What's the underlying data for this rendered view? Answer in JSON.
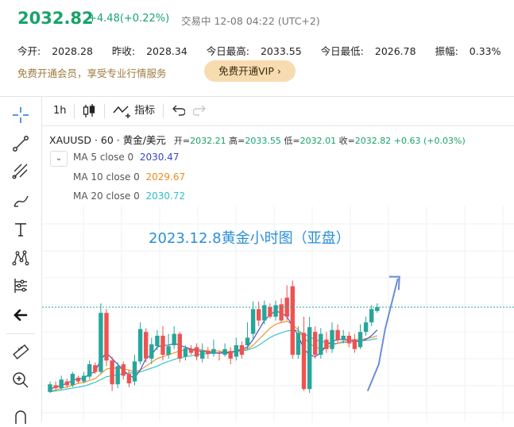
{
  "header": {
    "price": "2032.82",
    "change": "+4.48(+0.22%)",
    "status": "交易中 12-08 04:22 (UTC+2)",
    "stats": [
      {
        "label": "今开:",
        "value": "2028.28"
      },
      {
        "label": "昨收:",
        "value": "2028.34"
      },
      {
        "label": "今日最高:",
        "value": "2033.55"
      },
      {
        "label": "今日最低:",
        "value": "2026.78"
      },
      {
        "label": "振幅:",
        "value": "0.33%"
      }
    ],
    "promo_text": "免费开通会员，享受专业行情服务",
    "vip_button": "免费开通VIP",
    "vip_chevron": "›"
  },
  "toolbar": {
    "interval": "1h",
    "indicators_label": "指标"
  },
  "legend": {
    "symbol": "XAUUSD · 60 · 黄金/美元",
    "open_label": "开=",
    "open": "2032.21",
    "high_label": "高=",
    "high": "2033.55",
    "low_label": "低=",
    "low": "2032.01",
    "close_label": "收=",
    "close": "2032.82",
    "change": "+0.63 (+0.03%)",
    "ma": [
      {
        "label": "MA 5 close 0",
        "value": "2030.47",
        "color": "#3a45c8"
      },
      {
        "label": "MA 10 close 0",
        "value": "2029.67",
        "color": "#f08a1e"
      },
      {
        "label": "MA 20 close 0",
        "value": "2030.72",
        "color": "#2cbfc9"
      }
    ]
  },
  "chart_title": "2023.12.8黄金小时图（亚盘）",
  "colors": {
    "up": "#26a69a",
    "down": "#ef5350",
    "price_line": "#26a69a",
    "arrow": "#6a8fd4"
  },
  "chart_data": {
    "type": "candlestick",
    "title": "2023.12.8黄金小时图（亚盘）",
    "candles": [
      {
        "o": 1,
        "c": 9,
        "h": 12,
        "l": 0,
        "d": "up"
      },
      {
        "o": 8,
        "c": 5,
        "h": 12,
        "l": 3,
        "d": "down"
      },
      {
        "o": 5,
        "c": 14,
        "h": 18,
        "l": 3,
        "d": "up"
      },
      {
        "o": 12,
        "c": 8,
        "h": 15,
        "l": 6,
        "d": "down"
      },
      {
        "o": 8,
        "c": 20,
        "h": 22,
        "l": 6,
        "d": "up"
      },
      {
        "o": 16,
        "c": 12,
        "h": 18,
        "l": 10,
        "d": "down"
      },
      {
        "o": 12,
        "c": 18,
        "h": 22,
        "l": 10,
        "d": "up"
      },
      {
        "o": 17,
        "c": 30,
        "h": 34,
        "l": 14,
        "d": "up"
      },
      {
        "o": 29,
        "c": 22,
        "h": 32,
        "l": 20,
        "d": "down"
      },
      {
        "o": 22,
        "c": 84,
        "h": 94,
        "l": 20,
        "d": "up"
      },
      {
        "o": 84,
        "c": 34,
        "h": 88,
        "l": 28,
        "d": "down"
      },
      {
        "o": 34,
        "c": 9,
        "h": 38,
        "l": 2,
        "d": "down"
      },
      {
        "o": 9,
        "c": 28,
        "h": 32,
        "l": 5,
        "d": "up"
      },
      {
        "o": 30,
        "c": 18,
        "h": 33,
        "l": 14,
        "d": "down"
      },
      {
        "o": 20,
        "c": 10,
        "h": 24,
        "l": 6,
        "d": "down"
      },
      {
        "o": 12,
        "c": 33,
        "h": 40,
        "l": 8,
        "d": "up"
      },
      {
        "o": 33,
        "c": 67,
        "h": 74,
        "l": 30,
        "d": "up"
      },
      {
        "o": 64,
        "c": 36,
        "h": 68,
        "l": 32,
        "d": "down"
      },
      {
        "o": 36,
        "c": 51,
        "h": 58,
        "l": 30,
        "d": "up"
      },
      {
        "o": 49,
        "c": 60,
        "h": 66,
        "l": 45,
        "d": "up"
      },
      {
        "o": 60,
        "c": 40,
        "h": 70,
        "l": 34,
        "d": "down"
      },
      {
        "o": 40,
        "c": 49,
        "h": 62,
        "l": 36,
        "d": "up"
      },
      {
        "o": 50,
        "c": 62,
        "h": 70,
        "l": 46,
        "d": "up"
      },
      {
        "o": 62,
        "c": 36,
        "h": 64,
        "l": 32,
        "d": "down"
      },
      {
        "o": 38,
        "c": 47,
        "h": 50,
        "l": 34,
        "d": "up"
      },
      {
        "o": 46,
        "c": 42,
        "h": 50,
        "l": 40,
        "d": "down"
      },
      {
        "o": 48,
        "c": 38,
        "h": 52,
        "l": 34,
        "d": "down"
      },
      {
        "o": 36,
        "c": 44,
        "h": 52,
        "l": 32,
        "d": "up"
      },
      {
        "o": 44,
        "c": 41,
        "h": 48,
        "l": 36,
        "d": "down"
      },
      {
        "o": 41,
        "c": 46,
        "h": 56,
        "l": 38,
        "d": "up"
      },
      {
        "o": 42,
        "c": 41,
        "h": 44,
        "l": 34,
        "d": "down"
      },
      {
        "o": 40,
        "c": 46,
        "h": 52,
        "l": 38,
        "d": "up"
      },
      {
        "o": 44,
        "c": 36,
        "h": 48,
        "l": 30,
        "d": "down"
      },
      {
        "o": 38,
        "c": 50,
        "h": 58,
        "l": 34,
        "d": "up"
      },
      {
        "o": 50,
        "c": 40,
        "h": 54,
        "l": 36,
        "d": "down"
      },
      {
        "o": 50,
        "c": 58,
        "h": 74,
        "l": 46,
        "d": "up"
      },
      {
        "o": 62,
        "c": 88,
        "h": 96,
        "l": 56,
        "d": "up"
      },
      {
        "o": 88,
        "c": 76,
        "h": 96,
        "l": 70,
        "d": "down"
      },
      {
        "o": 76,
        "c": 92,
        "h": 97,
        "l": 72,
        "d": "up"
      },
      {
        "o": 90,
        "c": 80,
        "h": 94,
        "l": 78,
        "d": "down"
      },
      {
        "o": 80,
        "c": 92,
        "h": 97,
        "l": 76,
        "d": "up"
      },
      {
        "o": 93,
        "c": 76,
        "h": 99,
        "l": 74,
        "d": "down"
      },
      {
        "o": 100,
        "c": 80,
        "h": 113,
        "l": 76,
        "d": "down"
      },
      {
        "o": 112,
        "c": 40,
        "h": 118,
        "l": 36,
        "d": "down"
      },
      {
        "o": 40,
        "c": 63,
        "h": 70,
        "l": 36,
        "d": "up"
      },
      {
        "o": 63,
        "c": 4,
        "h": 80,
        "l": 2,
        "d": "down"
      },
      {
        "o": 4,
        "c": 69,
        "h": 80,
        "l": 0,
        "d": "up"
      },
      {
        "o": 64,
        "c": 40,
        "h": 70,
        "l": 36,
        "d": "down"
      },
      {
        "o": 40,
        "c": 62,
        "h": 68,
        "l": 36,
        "d": "up"
      },
      {
        "o": 56,
        "c": 46,
        "h": 64,
        "l": 42,
        "d": "down"
      },
      {
        "o": 46,
        "c": 66,
        "h": 74,
        "l": 42,
        "d": "up"
      },
      {
        "o": 66,
        "c": 56,
        "h": 72,
        "l": 52,
        "d": "down"
      },
      {
        "o": 56,
        "c": 60,
        "h": 66,
        "l": 52,
        "d": "up"
      },
      {
        "o": 60,
        "c": 52,
        "h": 64,
        "l": 48,
        "d": "down"
      },
      {
        "o": 56,
        "c": 46,
        "h": 62,
        "l": 42,
        "d": "down"
      },
      {
        "o": 48,
        "c": 64,
        "h": 72,
        "l": 46,
        "d": "up"
      },
      {
        "o": 64,
        "c": 74,
        "h": 80,
        "l": 60,
        "d": "up"
      },
      {
        "o": 74,
        "c": 88,
        "h": 92,
        "l": 70,
        "d": "up"
      },
      {
        "o": 86,
        "c": 90,
        "h": 94,
        "l": 84,
        "d": "up"
      }
    ],
    "ma5": [
      4,
      6,
      8,
      10,
      13,
      15,
      15,
      20,
      22,
      35,
      42,
      36,
      30,
      24,
      18,
      16,
      24,
      36,
      40,
      48,
      50,
      50,
      52,
      50,
      48,
      46,
      44,
      44,
      43,
      42,
      42,
      42,
      42,
      44,
      46,
      48,
      56,
      66,
      76,
      82,
      86,
      84,
      80,
      70,
      60,
      46,
      40,
      38,
      42,
      50,
      54,
      56,
      56,
      56,
      54,
      54,
      56,
      60,
      66
    ],
    "ma10": [
      2,
      3,
      5,
      6,
      8,
      10,
      11,
      13,
      15,
      20,
      25,
      26,
      26,
      25,
      24,
      22,
      24,
      28,
      32,
      36,
      38,
      40,
      42,
      44,
      45,
      46,
      46,
      45,
      44,
      44,
      44,
      43,
      43,
      44,
      45,
      46,
      50,
      56,
      62,
      68,
      72,
      74,
      75,
      72,
      66,
      58,
      52,
      48,
      46,
      48,
      50,
      52,
      54,
      55,
      56,
      56,
      57,
      58,
      60
    ],
    "ma20": [
      1,
      2,
      3,
      4,
      5,
      6,
      7,
      9,
      11,
      14,
      17,
      18,
      19,
      20,
      21,
      21,
      22,
      24,
      26,
      28,
      31,
      33,
      35,
      37,
      38,
      39,
      40,
      41,
      41,
      42,
      42,
      43,
      43,
      43,
      44,
      45,
      47,
      50,
      54,
      58,
      61,
      63,
      65,
      66,
      65,
      62,
      59,
      56,
      54,
      53,
      52,
      52,
      53,
      53,
      54,
      55,
      55,
      56,
      57
    ]
  }
}
